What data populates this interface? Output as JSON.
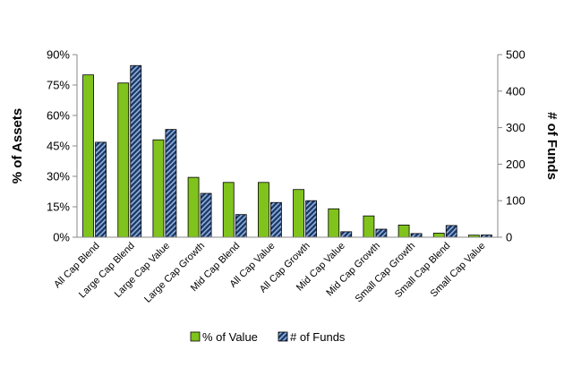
{
  "chart_data": {
    "type": "bar",
    "categories": [
      "All Cap Blend",
      "Large Cap Blend",
      "Large Cap Value",
      "Large Cap Growth",
      "Mid Cap Blend",
      "All Cap Value",
      "All Cap Growth",
      "Mid Cap Value",
      "Mid Cap Growth",
      "Small Cap Growth",
      "Small Cap Blend",
      "Small Cap Value"
    ],
    "series": [
      {
        "name": "% of Value",
        "axis": "left",
        "color": "#80c31c",
        "values": [
          80,
          76,
          48,
          29.5,
          27,
          27,
          23.5,
          14,
          10.5,
          6,
          2,
          1
        ]
      },
      {
        "name": "# of Funds",
        "axis": "right",
        "color": "#1f3864",
        "values": [
          260,
          470,
          295,
          120,
          62,
          95,
          100,
          15,
          22,
          10,
          32,
          6
        ]
      }
    ],
    "y_left": {
      "label": "% of Assets",
      "min": 0,
      "max": 90,
      "ticks": [
        "0%",
        "15%",
        "30%",
        "45%",
        "60%",
        "75%",
        "90%"
      ]
    },
    "y_right": {
      "label": "# of Funds",
      "min": 0,
      "max": 500,
      "ticks": [
        "0",
        "100",
        "200",
        "300",
        "400",
        "500"
      ]
    },
    "legend": {
      "position": "bottom"
    },
    "grid": false
  }
}
